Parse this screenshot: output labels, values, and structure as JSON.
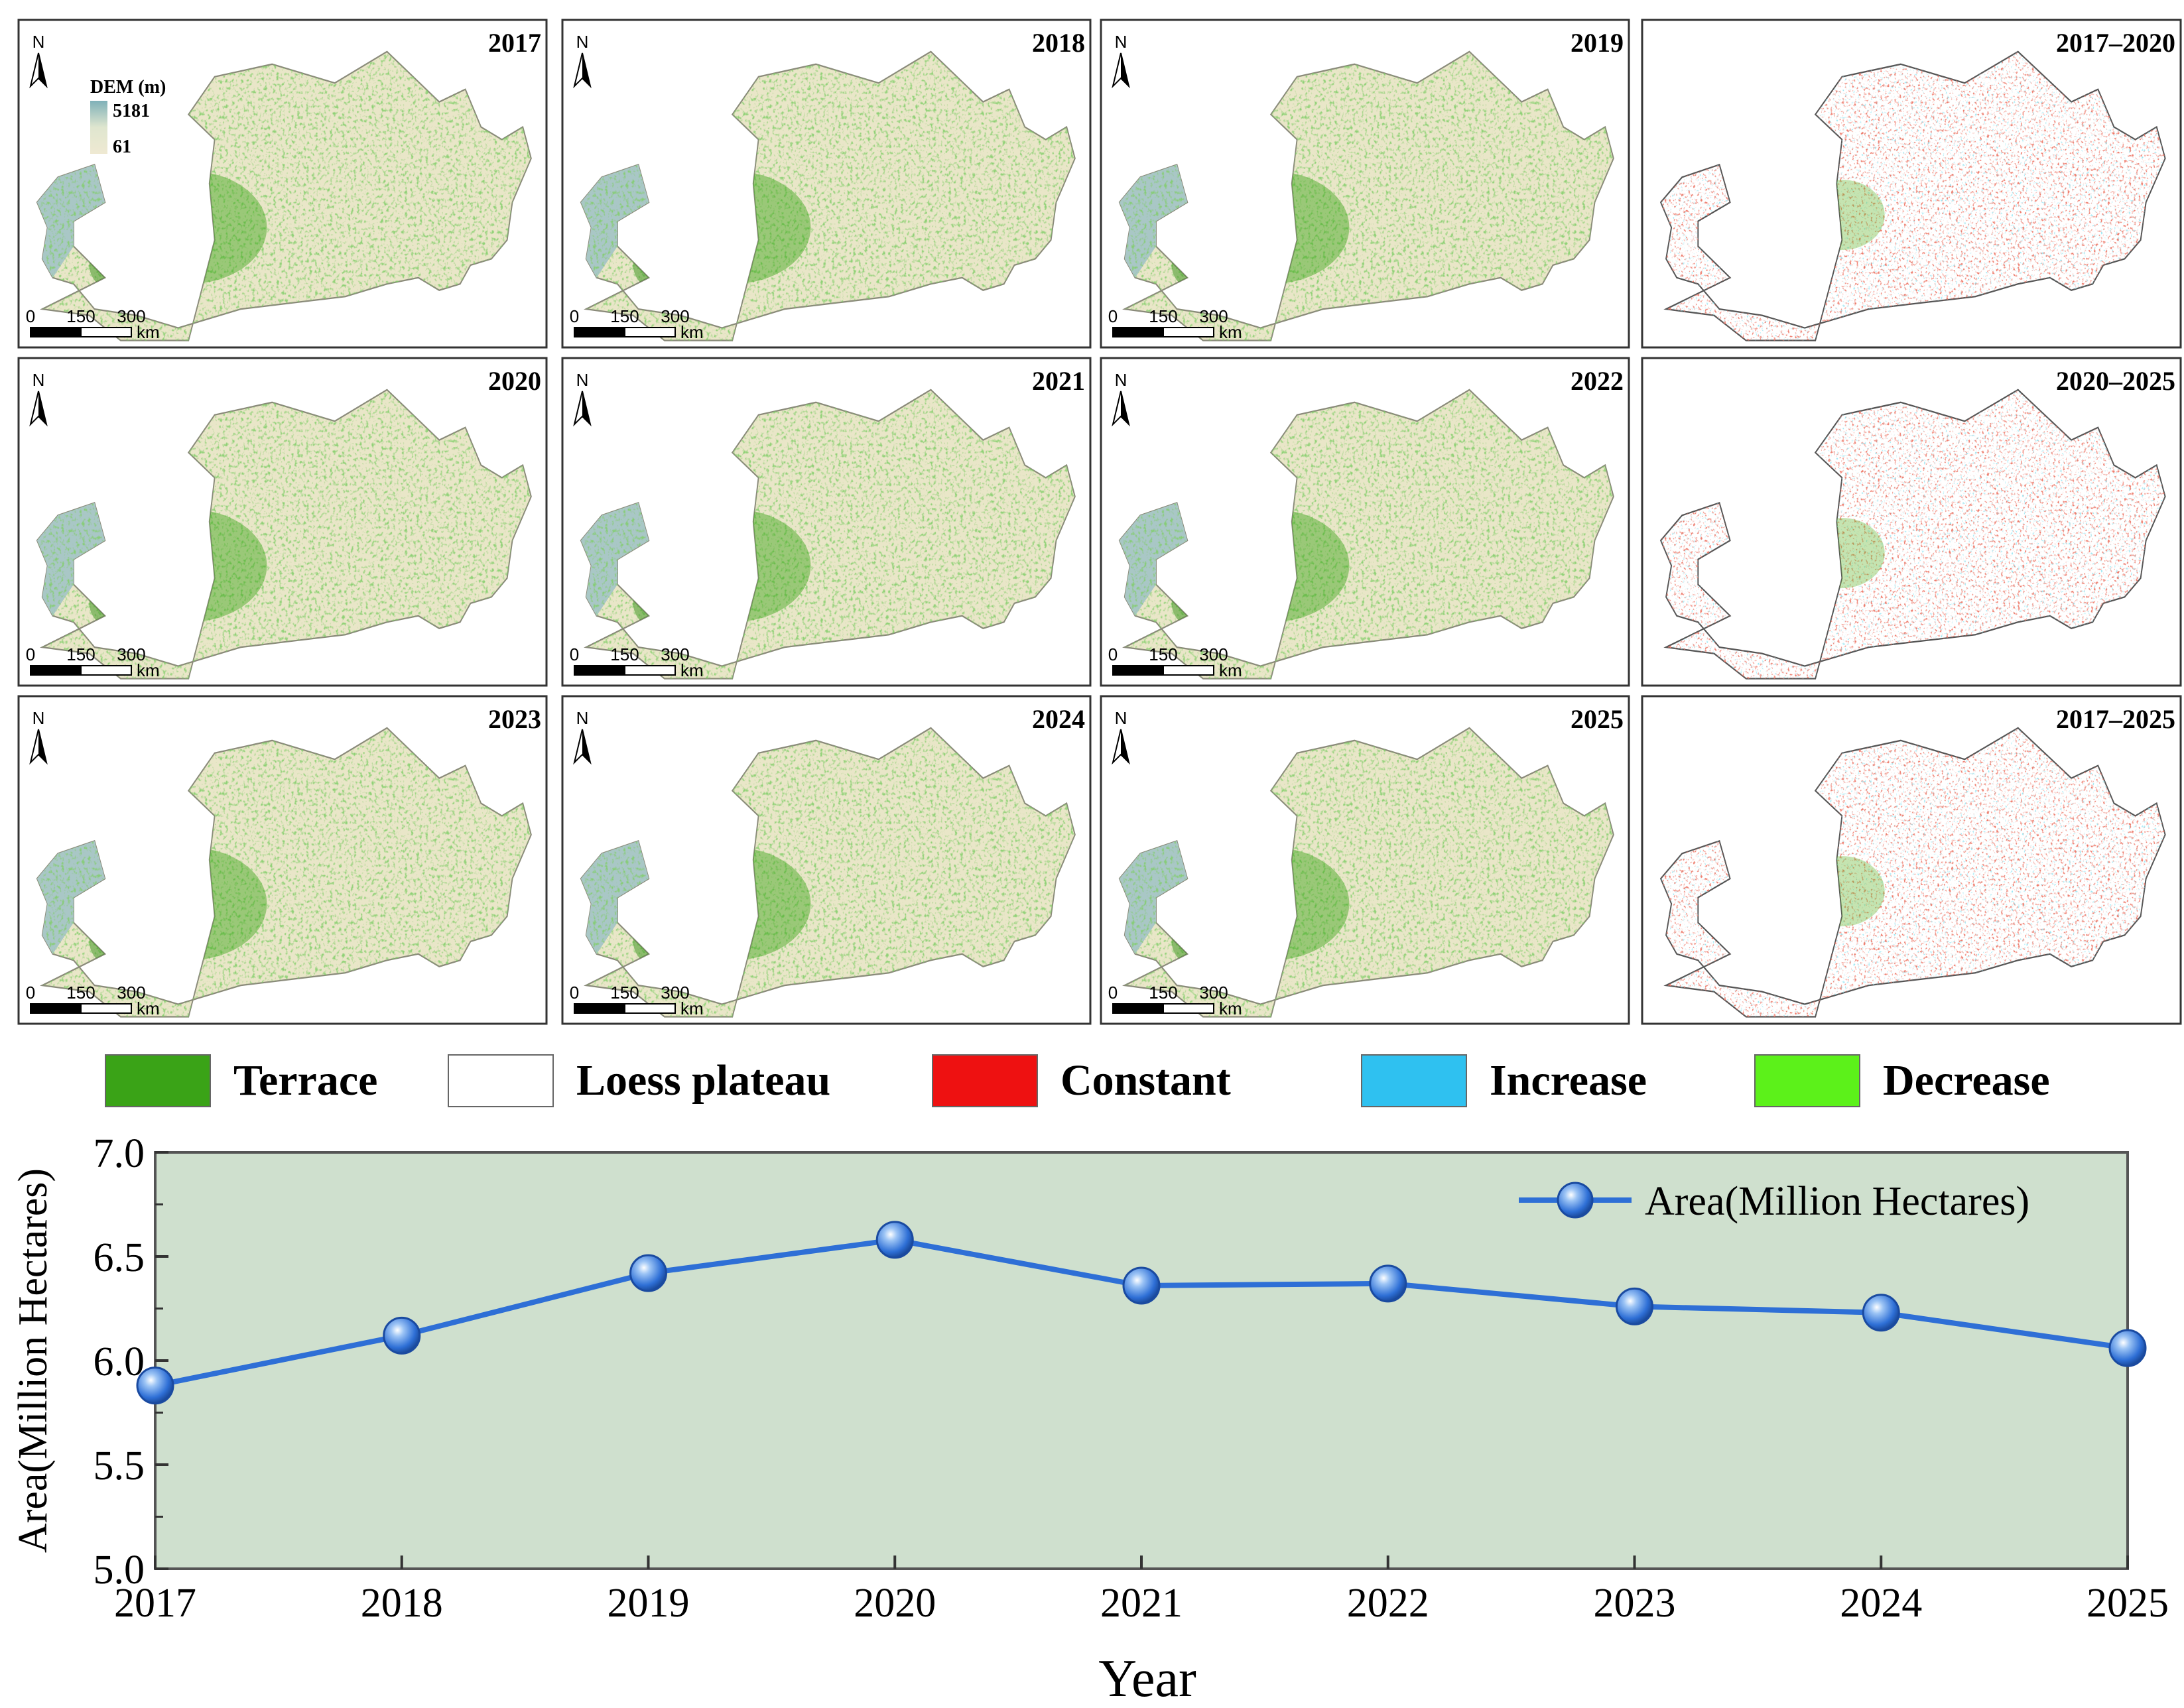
{
  "maps": {
    "panels": [
      {
        "label": "2017",
        "kind": "year"
      },
      {
        "label": "2018",
        "kind": "year"
      },
      {
        "label": "2019",
        "kind": "year"
      },
      {
        "label": "2017–2020",
        "kind": "change"
      },
      {
        "label": "2020",
        "kind": "year"
      },
      {
        "label": "2021",
        "kind": "year"
      },
      {
        "label": "2022",
        "kind": "year"
      },
      {
        "label": "2020–2025",
        "kind": "change"
      },
      {
        "label": "2023",
        "kind": "year"
      },
      {
        "label": "2024",
        "kind": "year"
      },
      {
        "label": "2025",
        "kind": "year"
      },
      {
        "label": "2017–2025",
        "kind": "change"
      }
    ],
    "north": "N",
    "scale_ticks": [
      "0",
      "150",
      "300"
    ],
    "scale_unit": "km",
    "dem": {
      "title": "DEM (m)",
      "max": "5181",
      "min": "61"
    }
  },
  "legend": {
    "items": [
      {
        "label": "Terrace",
        "color": "#3aa317"
      },
      {
        "label": "Loess plateau",
        "color": "#ffffff"
      },
      {
        "label": "Constant",
        "color": "#ee1111"
      },
      {
        "label": "Increase",
        "color": "#2fc1f0"
      },
      {
        "label": "Decrease",
        "color": "#5cf11a"
      }
    ]
  },
  "chart_data": {
    "type": "line",
    "categories": [
      "2017",
      "2018",
      "2019",
      "2020",
      "2021",
      "2022",
      "2023",
      "2024",
      "2025"
    ],
    "series": [
      {
        "name": "Area(Million Hectares)",
        "values": [
          5.88,
          6.12,
          6.42,
          6.58,
          6.36,
          6.37,
          6.26,
          6.23,
          6.06
        ],
        "color": "#2e6fd6"
      }
    ],
    "xlabel": "Year",
    "ylabel": "Area(Million Hectares)",
    "ylim": [
      5.0,
      7.0
    ],
    "yticks": [
      "5.0",
      "5.5",
      "6.0",
      "6.5",
      "7.0"
    ],
    "background": "#cfe0ce",
    "legend_position": "top-right"
  }
}
